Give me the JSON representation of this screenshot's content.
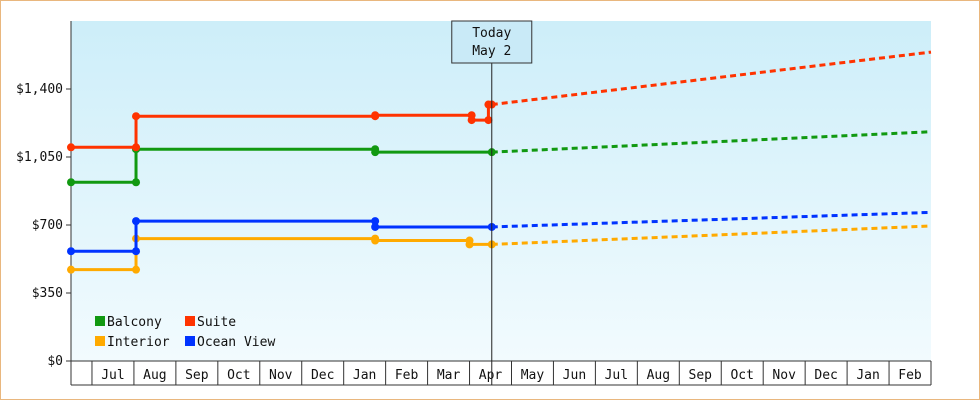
{
  "chart_data": {
    "type": "line",
    "title": "",
    "xlabel": "",
    "ylabel": "",
    "ylim": [
      0,
      1750
    ],
    "y_ticks": [
      {
        "value": 0,
        "label": "$0"
      },
      {
        "value": 350,
        "label": "$350"
      },
      {
        "value": 700,
        "label": "$700"
      },
      {
        "value": 1050,
        "label": "$1,050"
      },
      {
        "value": 1400,
        "label": "$1,400"
      }
    ],
    "x_axis": {
      "type": "time",
      "x_start": 0,
      "x_end": 20.5,
      "month_labels": [
        "Jul",
        "Aug",
        "Sep",
        "Oct",
        "Nov",
        "Dec",
        "Jan",
        "Feb",
        "Mar",
        "Apr",
        "May",
        "Jun",
        "Jul",
        "Aug",
        "Sep",
        "Oct",
        "Nov",
        "Dec",
        "Jan",
        "Feb"
      ]
    },
    "grid": false,
    "legend": {
      "placement": "bottom-left"
    },
    "today_marker": {
      "x": 10.03,
      "line1": "Today",
      "line2": "May 2"
    },
    "background_gradient": [
      "#cdeef9",
      "#f2fbfe"
    ],
    "series": [
      {
        "name": "Balcony",
        "color": "#119911",
        "points": [
          [
            0,
            920
          ],
          [
            1.55,
            920
          ],
          [
            1.55,
            1090
          ],
          [
            7.25,
            1090
          ],
          [
            7.25,
            1075
          ],
          [
            10.03,
            1075
          ]
        ],
        "markers": [
          [
            0,
            920
          ],
          [
            1.55,
            920
          ],
          [
            1.55,
            1090
          ],
          [
            7.25,
            1090
          ],
          [
            7.25,
            1075
          ],
          [
            10.03,
            1075
          ]
        ],
        "forecast": [
          [
            10.03,
            1075
          ],
          [
            20.5,
            1180
          ]
        ]
      },
      {
        "name": "Suite",
        "color": "#ff3300",
        "points": [
          [
            0,
            1100
          ],
          [
            1.55,
            1100
          ],
          [
            1.55,
            1260
          ],
          [
            7.25,
            1260
          ],
          [
            7.25,
            1265
          ],
          [
            9.55,
            1265
          ],
          [
            9.55,
            1240
          ],
          [
            9.95,
            1240
          ],
          [
            9.95,
            1320
          ],
          [
            10.03,
            1320
          ]
        ],
        "markers": [
          [
            0,
            1100
          ],
          [
            1.55,
            1100
          ],
          [
            1.55,
            1260
          ],
          [
            7.25,
            1260
          ],
          [
            7.25,
            1265
          ],
          [
            9.55,
            1265
          ],
          [
            9.55,
            1240
          ],
          [
            9.95,
            1240
          ],
          [
            9.95,
            1320
          ],
          [
            10.03,
            1320
          ]
        ],
        "forecast": [
          [
            10.03,
            1320
          ],
          [
            20.5,
            1590
          ]
        ]
      },
      {
        "name": "Interior",
        "color": "#ffaa00",
        "points": [
          [
            0,
            470
          ],
          [
            1.55,
            470
          ],
          [
            1.55,
            630
          ],
          [
            7.25,
            630
          ],
          [
            7.25,
            620
          ],
          [
            9.5,
            620
          ],
          [
            9.5,
            600
          ],
          [
            10.03,
            600
          ]
        ],
        "markers": [
          [
            0,
            470
          ],
          [
            1.55,
            470
          ],
          [
            1.55,
            630
          ],
          [
            7.25,
            630
          ],
          [
            7.25,
            620
          ],
          [
            9.5,
            620
          ],
          [
            9.5,
            600
          ],
          [
            10.03,
            600
          ]
        ],
        "forecast": [
          [
            10.03,
            600
          ],
          [
            20.5,
            695
          ]
        ]
      },
      {
        "name": "Ocean View",
        "color": "#0033ff",
        "points": [
          [
            0,
            565
          ],
          [
            1.55,
            565
          ],
          [
            1.55,
            720
          ],
          [
            7.25,
            720
          ],
          [
            7.25,
            690
          ],
          [
            10.03,
            690
          ]
        ],
        "markers": [
          [
            0,
            565
          ],
          [
            1.55,
            565
          ],
          [
            1.55,
            720
          ],
          [
            7.25,
            720
          ],
          [
            7.25,
            690
          ],
          [
            10.03,
            690
          ]
        ],
        "forecast": [
          [
            10.03,
            690
          ],
          [
            20.5,
            765
          ]
        ]
      }
    ]
  }
}
